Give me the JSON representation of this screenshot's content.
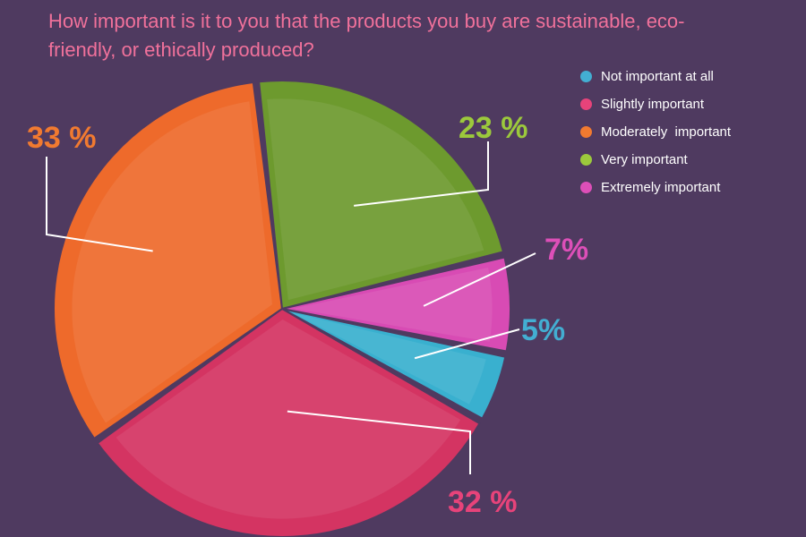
{
  "chart_data": {
    "type": "pie",
    "title": "How important is it to you that the products you buy are sustainable, eco-friendly, or ethically produced?",
    "legend_position": "top-right",
    "slices": [
      {
        "name": "Not important at all",
        "value": 5,
        "label": "5%",
        "color": "#39b0cf"
      },
      {
        "name": "Slightly important",
        "value": 32,
        "label": "32 %",
        "color": "#d43462"
      },
      {
        "name": "Moderately  important",
        "value": 33,
        "label": "33 %",
        "color": "#ee6a2b"
      },
      {
        "name": "Very important",
        "value": 23,
        "label": "23 %",
        "color": "#6d9a2e"
      },
      {
        "name": "Extremely important",
        "value": 7,
        "label": "7%",
        "color": "#d84bb4"
      }
    ]
  },
  "label_colors": {
    "Not important at all": "#43aed2",
    "Slightly important": "#e7437a",
    "Moderately  important": "#f17a30",
    "Very important": "#9cc93c",
    "Extremely important": "#dd4fb8"
  }
}
